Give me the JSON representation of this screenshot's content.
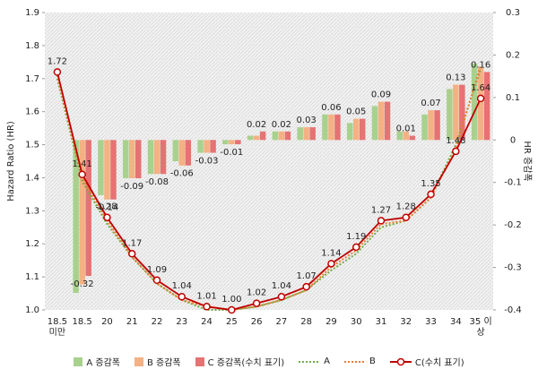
{
  "chart_data": {
    "type": "combo",
    "y_label": "Hazard Ratio (HR)",
    "y2_label": "HR 증감폭",
    "categories": [
      "18.5 미만",
      "18.5",
      "20",
      "21",
      "22",
      "23",
      "24",
      "25",
      "26",
      "27",
      "28",
      "29",
      "30",
      "31",
      "32",
      "33",
      "34",
      "35 이상"
    ],
    "ylim": [
      1,
      1.9
    ],
    "yticks": [
      {
        "value": 1,
        "label": "1.0"
      },
      1.1,
      1.2,
      1.3,
      1.4,
      1.5,
      1.6,
      1.7,
      1.8,
      1.9
    ],
    "y2lim": [
      -0.4,
      0.3
    ],
    "y2ticks": [
      -0.4,
      -0.3,
      -0.2,
      -0.1,
      0,
      0.1,
      0.2,
      0.3
    ],
    "series": [
      {
        "name": "A 증감폭",
        "type": "bar",
        "axis": "y2",
        "color": "#a9d18e",
        "values": [
          null,
          -0.36,
          -0.13,
          -0.09,
          -0.08,
          -0.05,
          -0.03,
          -0.01,
          0.01,
          0.02,
          0.03,
          0.06,
          0.04,
          0.08,
          0.02,
          0.06,
          0.12,
          0.18
        ]
      },
      {
        "name": "B 증감폭",
        "type": "bar",
        "axis": "y2",
        "color": "#f4b183",
        "values": [
          null,
          -0.34,
          -0.14,
          -0.09,
          -0.08,
          -0.06,
          -0.03,
          -0.01,
          0.01,
          0.02,
          0.03,
          0.06,
          0.05,
          0.09,
          0.02,
          0.07,
          0.13,
          0.17
        ]
      },
      {
        "name": "C 증감폭(수치 표기)",
        "type": "bar",
        "axis": "y2",
        "color": "#e57373",
        "data_labels": true,
        "values": [
          null,
          -0.32,
          -0.14,
          -0.09,
          -0.08,
          -0.06,
          -0.03,
          -0.01,
          0.02,
          0.02,
          0.03,
          0.06,
          0.05,
          0.09,
          0.01,
          0.07,
          0.13,
          0.16
        ]
      },
      {
        "name": "A",
        "type": "line",
        "style": "dotted",
        "color": "#70ad47",
        "values": [
          1.7,
          1.39,
          1.26,
          1.16,
          1.08,
          1.03,
          1.0,
          1.0,
          1.01,
          1.03,
          1.06,
          1.12,
          1.17,
          1.25,
          1.27,
          1.34,
          1.5,
          1.73
        ]
      },
      {
        "name": "B",
        "type": "line",
        "style": "dotted",
        "color": "#ed7d31",
        "values": [
          1.71,
          1.4,
          1.27,
          1.16,
          1.08,
          1.03,
          1.01,
          1.0,
          1.01,
          1.03,
          1.06,
          1.13,
          1.18,
          1.26,
          1.27,
          1.34,
          1.49,
          1.74
        ]
      },
      {
        "name": "C(수치 표기)",
        "type": "line",
        "style": "solid",
        "color": "#c00000",
        "data_labels": true,
        "values": [
          1.72,
          1.41,
          1.28,
          1.17,
          1.09,
          1.04,
          1.01,
          1.0,
          1.02,
          1.04,
          1.07,
          1.14,
          1.19,
          1.27,
          1.28,
          1.35,
          1.48,
          1.64
        ],
        "value_labels": [
          "1.72",
          "1.41",
          "1.28",
          "1.17",
          "1.09",
          "1.04",
          "1.01",
          "1.00",
          "1.02",
          "1.04",
          "1.07",
          "1.14",
          "1.19",
          "1.27",
          "1.28",
          "1.35",
          "1.48",
          "1.64"
        ]
      }
    ]
  }
}
